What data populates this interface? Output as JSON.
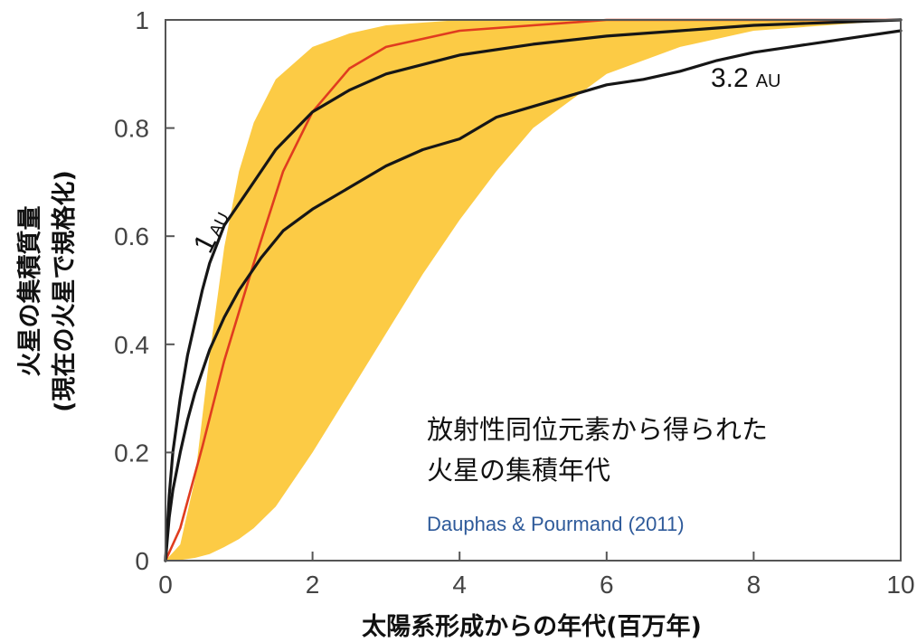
{
  "colors": {
    "band": "#fccb45",
    "median": "#e03c1f",
    "curve": "#161616",
    "citation": "#2e5a9a",
    "axis": "#555555"
  },
  "chart_data": {
    "type": "line",
    "xlabel": "太陽系形成からの年代(百万年)",
    "ylabel_line1": "火星の集積質量",
    "ylabel_line2": "(現在の火星で規格化)",
    "xlim": [
      0,
      10
    ],
    "ylim": [
      0,
      1
    ],
    "x_ticks": [
      "0",
      "2",
      "4",
      "6",
      "8",
      "10"
    ],
    "y_ticks": [
      "0",
      "0.2",
      "0.4",
      "0.6",
      "0.8",
      "1"
    ],
    "grid": false,
    "annotation_line1": "放射性同位元素から得られた",
    "annotation_line2": "火星の集積年代",
    "citation": "Dauphas & Pourmand (2011)",
    "band": {
      "x": [
        0,
        0.2,
        0.4,
        0.6,
        0.8,
        1.0,
        1.2,
        1.5,
        2.0,
        2.5,
        3.0,
        3.5,
        4.0,
        4.5,
        5.0,
        6.0,
        7.0,
        8.0,
        9.0,
        10.0
      ],
      "upper": [
        0,
        0.03,
        0.15,
        0.38,
        0.58,
        0.72,
        0.81,
        0.89,
        0.95,
        0.975,
        0.99,
        0.995,
        1.0,
        1.0,
        1.0,
        1.0,
        1.0,
        1.0,
        1.0,
        1.0
      ],
      "lower": [
        0,
        0.001,
        0.005,
        0.012,
        0.025,
        0.04,
        0.06,
        0.1,
        0.2,
        0.31,
        0.42,
        0.53,
        0.63,
        0.72,
        0.8,
        0.9,
        0.95,
        0.98,
        0.99,
        1.0
      ]
    },
    "series": [
      {
        "name": "",
        "label_main": "",
        "label_sub": "",
        "x": [
          0,
          0.2,
          0.5,
          0.8,
          1.2,
          1.6,
          2.0,
          2.5,
          3.0,
          4.0,
          5.0,
          6.0,
          7.0,
          8.0,
          9.0,
          10.0
        ],
        "y": [
          0,
          0.06,
          0.21,
          0.37,
          0.55,
          0.72,
          0.83,
          0.91,
          0.95,
          0.98,
          0.99,
          1.0,
          1.0,
          1.0,
          1.0,
          1.0
        ]
      },
      {
        "name": "1 AU",
        "label_main": "1",
        "label_sub": "AU",
        "x": [
          0,
          0.05,
          0.1,
          0.2,
          0.3,
          0.4,
          0.5,
          0.6,
          0.8,
          1.0,
          1.2,
          1.5,
          2.0,
          2.5,
          3.0,
          4.0,
          5.0,
          6.0,
          7.0,
          8.0,
          9.0,
          10.0
        ],
        "y": [
          0,
          0.12,
          0.2,
          0.3,
          0.38,
          0.44,
          0.5,
          0.55,
          0.62,
          0.66,
          0.7,
          0.76,
          0.83,
          0.87,
          0.9,
          0.935,
          0.955,
          0.97,
          0.98,
          0.99,
          0.995,
          1.0
        ]
      },
      {
        "name": "3.2 AU",
        "label_main": "3.2",
        "label_sub": "AU",
        "x": [
          0,
          0.05,
          0.1,
          0.2,
          0.3,
          0.4,
          0.6,
          0.8,
          1.0,
          1.3,
          1.6,
          2.0,
          2.5,
          3.0,
          3.5,
          4.0,
          4.5,
          5.0,
          5.5,
          6.0,
          6.5,
          7.0,
          7.5,
          8.0,
          8.5,
          9.0,
          9.5,
          10.0
        ],
        "y": [
          0,
          0.08,
          0.13,
          0.2,
          0.26,
          0.31,
          0.39,
          0.45,
          0.5,
          0.56,
          0.61,
          0.65,
          0.69,
          0.73,
          0.76,
          0.78,
          0.82,
          0.84,
          0.86,
          0.88,
          0.89,
          0.905,
          0.925,
          0.94,
          0.95,
          0.96,
          0.97,
          0.98
        ]
      }
    ]
  }
}
